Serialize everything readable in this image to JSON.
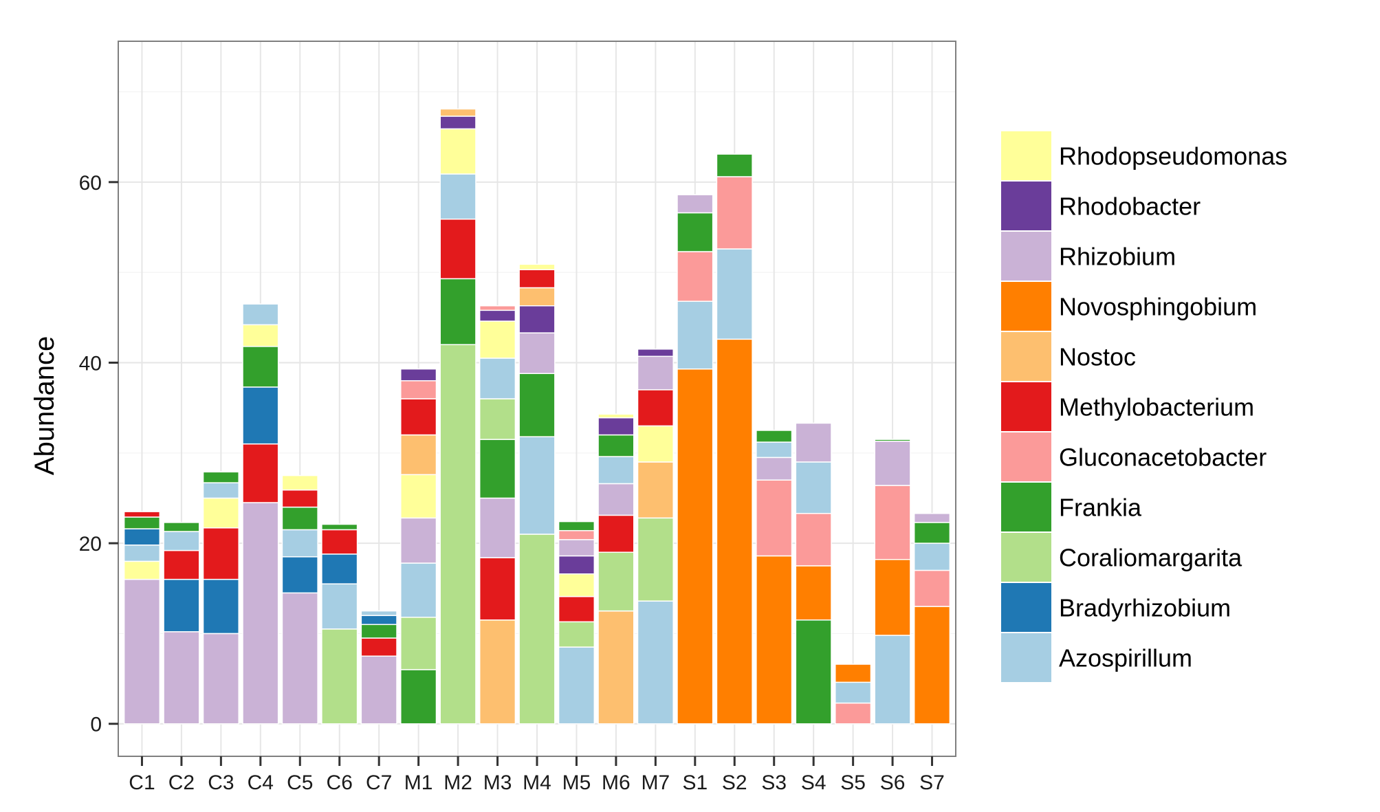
{
  "chart_data": {
    "type": "bar",
    "stacked": true,
    "title": "",
    "xlabel": "",
    "ylabel": "Abundance",
    "ylim": [
      -3.6,
      75.6
    ],
    "y_ticks": [
      "0",
      "20",
      "40",
      "60"
    ],
    "grid": true,
    "legend_position": "right",
    "categories": [
      "C1",
      "C2",
      "C3",
      "C4",
      "C5",
      "C6",
      "C7",
      "M1",
      "M2",
      "M3",
      "M4",
      "M5",
      "M6",
      "M7",
      "S1",
      "S2",
      "S3",
      "S4",
      "S5",
      "S6",
      "S7"
    ],
    "series": [
      {
        "name": "Rhizobium",
        "color": "#cab2d6",
        "values": [
          16.0,
          10.2,
          10.0,
          24.5,
          14.5,
          0,
          7.5,
          5.0,
          0,
          6.6,
          4.5,
          1.8,
          3.5,
          3.7,
          2.0,
          0,
          2.5,
          4.3,
          0,
          4.9,
          1.0
        ]
      },
      {
        "name": "Bradyrhizobium",
        "color": "#1f78b4",
        "values": [
          1.8,
          5.8,
          6.0,
          6.3,
          4.0,
          3.3,
          1.0,
          0,
          0,
          0,
          0,
          2.1,
          0,
          0,
          0,
          0,
          0,
          0,
          0,
          0,
          0
        ]
      },
      {
        "name": "Azospirillum",
        "color": "#a6cee3",
        "values": [
          1.8,
          2.1,
          1.7,
          2.3,
          3.0,
          5.0,
          0.5,
          6.0,
          5.0,
          4.5,
          10.8,
          8.5,
          3.0,
          13.6,
          7.5,
          10.0,
          1.7,
          5.7,
          2.3,
          9.8,
          3.0
        ]
      },
      {
        "name": "Frankia",
        "color": "#33a02c",
        "values": [
          1.3,
          1.0,
          1.2,
          4.5,
          2.5,
          0.6,
          1.5,
          6.0,
          7.3,
          6.5,
          7.0,
          1.0,
          2.4,
          0,
          4.3,
          2.5,
          1.3,
          11.5,
          0,
          0.2,
          2.3
        ]
      },
      {
        "name": "Rhodopseudomonas",
        "color": "#ffff99",
        "values": [
          2.0,
          0,
          3.3,
          2.4,
          1.6,
          0,
          0,
          4.8,
          5.0,
          4.1,
          0.6,
          2.5,
          0.4,
          4.0,
          0,
          0,
          0,
          0,
          0,
          0,
          0
        ]
      },
      {
        "name": "Methylobacterium",
        "color": "#e31a1c",
        "values": [
          0.6,
          3.2,
          5.7,
          6.5,
          1.9,
          2.7,
          2.0,
          4.0,
          6.6,
          6.9,
          2.0,
          2.8,
          4.1,
          4.0,
          0,
          0,
          0,
          0,
          0,
          0,
          0
        ]
      },
      {
        "name": "Coraliomargarita",
        "color": "#b2df8a",
        "values": [
          0,
          0,
          0,
          0,
          0,
          10.5,
          0,
          5.8,
          42.0,
          4.5,
          21.0,
          2.8,
          6.5,
          9.2,
          0,
          0,
          0,
          0,
          0,
          0,
          0
        ]
      },
      {
        "name": "Gluconacetobacter",
        "color": "#fb9a99",
        "values": [
          0,
          0,
          0,
          0,
          0,
          0,
          0,
          2.0,
          0,
          0.5,
          0,
          1.0,
          0,
          0,
          5.5,
          8.0,
          8.4,
          5.8,
          2.3,
          8.2,
          4.0
        ]
      },
      {
        "name": "Nostoc",
        "color": "#fdbf6f",
        "values": [
          0,
          0,
          0,
          0,
          0,
          0,
          0,
          4.4,
          0.8,
          11.5,
          2.0,
          0,
          12.5,
          6.2,
          0,
          0,
          0,
          0,
          0,
          0,
          0
        ]
      },
      {
        "name": "Rhodobacter",
        "color": "#6a3d9a",
        "values": [
          0,
          0,
          0,
          0,
          0,
          0,
          0,
          1.3,
          1.4,
          1.2,
          3.0,
          2.0,
          1.9,
          0.8,
          0,
          0,
          0,
          0,
          0,
          0,
          0
        ]
      },
      {
        "name": "Novosphingobium",
        "color": "#ff7f00",
        "values": [
          0,
          0,
          0,
          0,
          0,
          0,
          0,
          0,
          0,
          0,
          0,
          0,
          0,
          0,
          39.3,
          42.6,
          18.6,
          6.0,
          2.0,
          8.4,
          13.0
        ]
      }
    ],
    "stack_order": {
      "C1": [
        "Rhizobium",
        "Rhodopseudomonas",
        "Azospirillum",
        "Bradyrhizobium",
        "Frankia",
        "Methylobacterium"
      ],
      "C2": [
        "Rhizobium",
        "Bradyrhizobium",
        "Methylobacterium",
        "Azospirillum",
        "Frankia"
      ],
      "C3": [
        "Rhizobium",
        "Bradyrhizobium",
        "Methylobacterium",
        "Rhodopseudomonas",
        "Azospirillum",
        "Frankia"
      ],
      "C4": [
        "Rhizobium",
        "Methylobacterium",
        "Bradyrhizobium",
        "Frankia",
        "Rhodopseudomonas",
        "Azospirillum"
      ],
      "C5": [
        "Rhizobium",
        "Bradyrhizobium",
        "Azospirillum",
        "Frankia",
        "Methylobacterium",
        "Rhodopseudomonas"
      ],
      "C6": [
        "Coraliomargarita",
        "Azospirillum",
        "Rhizobium",
        "Bradyrhizobium",
        "Methylobacterium",
        "Frankia"
      ],
      "C7": [
        "Rhizobium",
        "Methylobacterium",
        "Frankia",
        "Bradyrhizobium",
        "Azospirillum"
      ],
      "M1": [
        "Frankia",
        "Coraliomargarita",
        "Azospirillum",
        "Rhizobium",
        "Rhodopseudomonas",
        "Nostoc",
        "Methylobacterium",
        "Gluconacetobacter",
        "Rhodobacter"
      ],
      "M2": [
        "Coraliomargarita",
        "Frankia",
        "Methylobacterium",
        "Azospirillum",
        "Rhodopseudomonas",
        "Rhizobium",
        "Rhodobacter",
        "Nostoc"
      ],
      "M3": [
        "Nostoc",
        "Methylobacterium",
        "Rhizobium",
        "Frankia",
        "Coraliomargarita",
        "Azospirillum",
        "Rhodopseudomonas",
        "Rhodobacter",
        "Gluconacetobacter"
      ],
      "M4": [
        "Coraliomargarita",
        "Azospirillum",
        "Frankia",
        "Rhizobium",
        "Rhodobacter",
        "Nostoc",
        "Methylobacterium",
        "Rhodopseudomonas"
      ],
      "M5": [
        "Azospirillum",
        "Coraliomargarita",
        "Methylobacterium",
        "Rhodopseudomonas",
        "Rhodobacter",
        "Rhizobium",
        "Gluconacetobacter",
        "Frankia"
      ],
      "M6": [
        "Nostoc",
        "Coraliomargarita",
        "Methylobacterium",
        "Rhizobium",
        "Azospirillum",
        "Frankia",
        "Rhodobacter",
        "Rhodopseudomonas"
      ],
      "M7": [
        "Azospirillum",
        "Coraliomargarita",
        "Nostoc",
        "Rhodopseudomonas",
        "Methylobacterium",
        "Rhizobium",
        "Rhodobacter"
      ],
      "S1": [
        "Novosphingobium",
        "Azospirillum",
        "Gluconacetobacter",
        "Frankia",
        "Rhizobium"
      ],
      "S2": [
        "Novosphingobium",
        "Azospirillum",
        "Gluconacetobacter",
        "Frankia"
      ],
      "S3": [
        "Novosphingobium",
        "Gluconacetobacter",
        "Rhizobium",
        "Azospirillum",
        "Frankia"
      ],
      "S4": [
        "Frankia",
        "Novosphingobium",
        "Gluconacetobacter",
        "Azospirillum",
        "Rhizobium"
      ],
      "S5": [
        "Gluconacetobacter",
        "Azospirillum",
        "Novosphingobium"
      ],
      "S6": [
        "Azospirillum",
        "Novosphingobium",
        "Gluconacetobacter",
        "Rhizobium",
        "Frankia"
      ],
      "S7": [
        "Novosphingobium",
        "Gluconacetobacter",
        "Azospirillum",
        "Frankia",
        "Rhizobium"
      ]
    },
    "legend": [
      {
        "label": "Rhodopseudomonas",
        "color": "#ffff99"
      },
      {
        "label": "Rhodobacter",
        "color": "#6a3d9a"
      },
      {
        "label": "Rhizobium",
        "color": "#cab2d6"
      },
      {
        "label": "Novosphingobium",
        "color": "#ff7f00"
      },
      {
        "label": "Nostoc",
        "color": "#fdbf6f"
      },
      {
        "label": "Methylobacterium",
        "color": "#e31a1c"
      },
      {
        "label": "Gluconacetobacter",
        "color": "#fb9a99"
      },
      {
        "label": "Frankia",
        "color": "#33a02c"
      },
      {
        "label": "Coraliomargarita",
        "color": "#b2df8a"
      },
      {
        "label": "Bradyrhizobium",
        "color": "#1f78b4"
      },
      {
        "label": "Azospirillum",
        "color": "#a6cee3"
      }
    ]
  }
}
